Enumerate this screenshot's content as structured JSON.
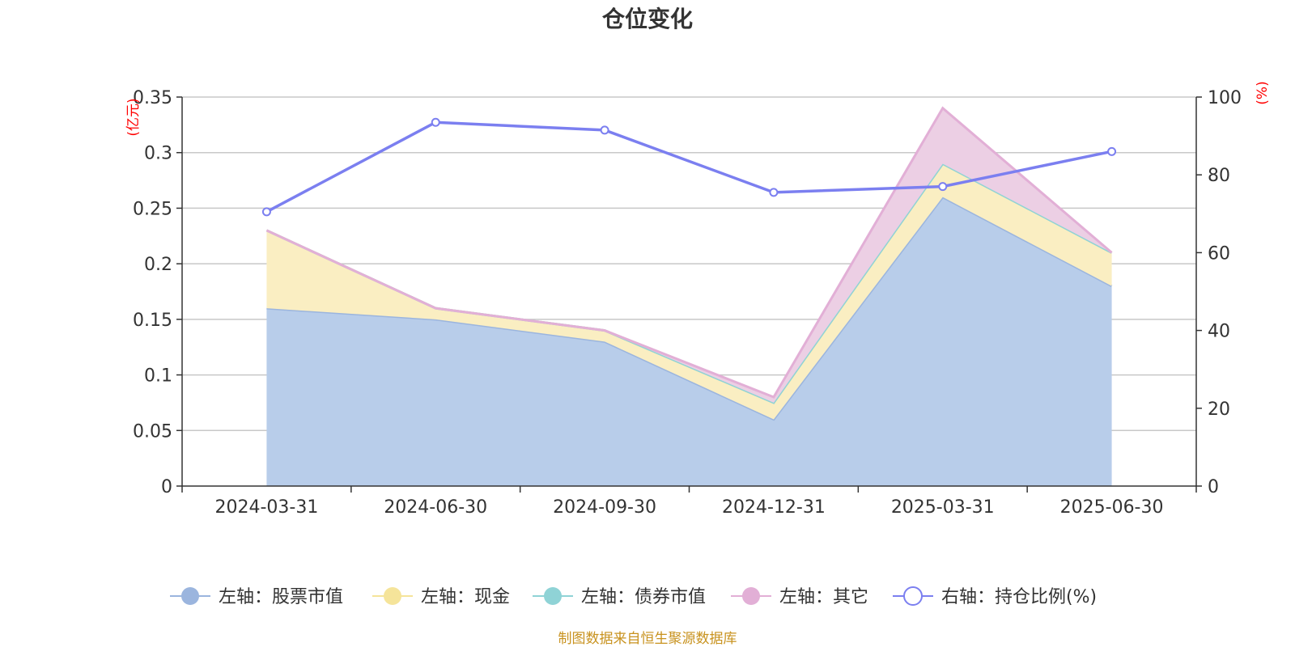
{
  "chart_data": {
    "type": "area",
    "title": "仓位变化",
    "categories": [
      "2024-03-31",
      "2024-06-30",
      "2024-09-30",
      "2024-12-31",
      "2025-03-31",
      "2025-06-30"
    ],
    "left_axis": {
      "unit": "(亿元)",
      "ylim": [
        0,
        0.35
      ],
      "ticks": [
        "0",
        "0.05",
        "0.1",
        "0.15",
        "0.2",
        "0.25",
        "0.3",
        "0.35"
      ]
    },
    "right_axis": {
      "unit": "(%)",
      "ylim": [
        0,
        100
      ],
      "ticks": [
        "0",
        "20",
        "40",
        "60",
        "80",
        "100"
      ]
    },
    "stacked": true,
    "series": [
      {
        "name": "左轴：股票市值",
        "axis": "left",
        "type": "area",
        "color": "#9bb5de",
        "fill": "#b8cdea",
        "values": [
          0.16,
          0.15,
          0.13,
          0.06,
          0.26,
          0.18
        ]
      },
      {
        "name": "左轴：现金",
        "axis": "left",
        "type": "area",
        "color": "#f5e49a",
        "fill": "#faeec2",
        "values": [
          0.07,
          0.01,
          0.01,
          0.015,
          0.03,
          0.03
        ]
      },
      {
        "name": "左轴：债券市值",
        "axis": "left",
        "type": "area",
        "color": "#8fd3d6",
        "fill": "#bfe6e8",
        "values": [
          0,
          0,
          0,
          0,
          0,
          0
        ]
      },
      {
        "name": "左轴：其它",
        "axis": "left",
        "type": "area",
        "color": "#e2afd6",
        "fill": "#eccfe4",
        "values": [
          0,
          0,
          0,
          0.005,
          0.05,
          0
        ]
      },
      {
        "name": "右轴：持仓比例(%)",
        "axis": "right",
        "type": "line",
        "color": "#7b7ff0",
        "values": [
          70.5,
          93.5,
          91.5,
          75.5,
          77,
          86
        ]
      }
    ],
    "grid": true,
    "legend_position": "bottom"
  },
  "source_note": "制图数据来自恒生聚源数据库"
}
